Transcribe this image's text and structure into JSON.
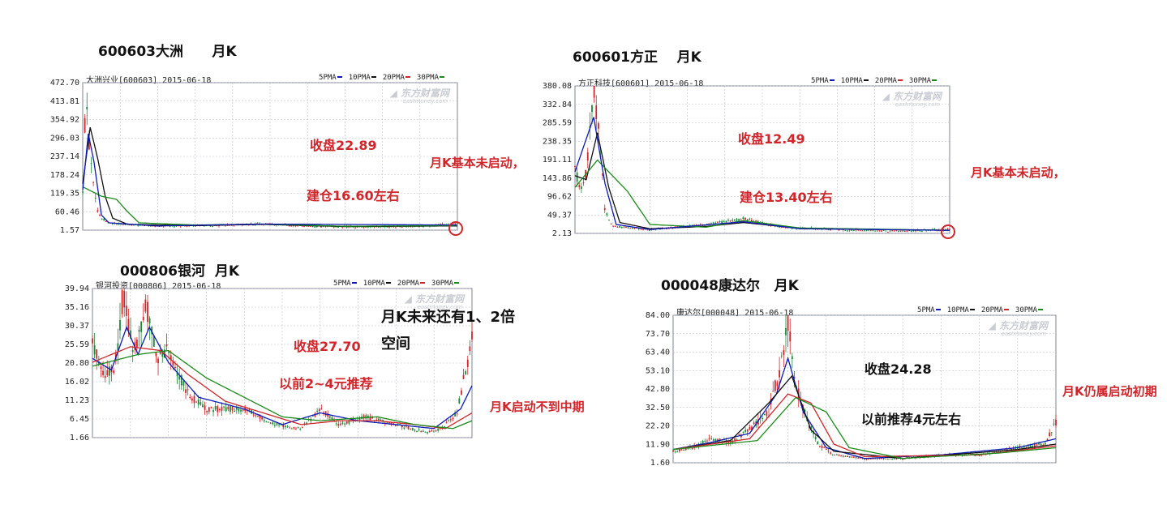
{
  "colors": {
    "ma5": "#0d1ab8",
    "ma10": "#111111",
    "ma20": "#d0262b",
    "ma30": "#1a8a1a",
    "annotation": "#d0262b",
    "grid": "#b8bec8"
  },
  "legend_labels": [
    "5PMA",
    "10PMA",
    "20PMA",
    "30PMA"
  ],
  "watermark": "东方财富网",
  "watermark_sub": "eastmoney.com",
  "charts": [
    {
      "title": "600603大洲",
      "period": "月K",
      "header": "大洲兴业[600603] 2015-06-18",
      "notes": {
        "close": "收盘22.89",
        "build": "建仓16.60左右",
        "status": "月K基本未启动，"
      },
      "chart_data": {
        "type": "candlestick",
        "y_ticks": [
          "472.70",
          "413.81",
          "354.92",
          "296.03",
          "237.14",
          "178.24",
          "119.35",
          "60.46",
          "1.57"
        ],
        "ylim": [
          1.57,
          472.7
        ],
        "series": {
          "price": [
            [
              0,
              120
            ],
            [
              0.005,
              320
            ],
            [
              0.01,
              440
            ],
            [
              0.015,
              300
            ],
            [
              0.02,
              250
            ],
            [
              0.03,
              150
            ],
            [
              0.04,
              60
            ],
            [
              0.05,
              40
            ],
            [
              0.07,
              25
            ],
            [
              0.1,
              20
            ],
            [
              0.2,
              15
            ],
            [
              0.35,
              16
            ],
            [
              0.48,
              22
            ],
            [
              0.6,
              14
            ],
            [
              0.75,
              12
            ],
            [
              0.9,
              14
            ],
            [
              1,
              23
            ]
          ],
          "ma10": [
            [
              0,
              150
            ],
            [
              0.02,
              330
            ],
            [
              0.04,
              230
            ],
            [
              0.06,
              110
            ],
            [
              0.08,
              40
            ],
            [
              0.12,
              20
            ],
            [
              0.3,
              16
            ],
            [
              0.48,
              20
            ],
            [
              0.7,
              13
            ],
            [
              1,
              15
            ]
          ],
          "ma30": [
            [
              0,
              140
            ],
            [
              0.05,
              110
            ],
            [
              0.09,
              100
            ],
            [
              0.12,
              60
            ],
            [
              0.15,
              25
            ],
            [
              0.3,
              18
            ],
            [
              0.48,
              21
            ],
            [
              0.7,
              14
            ],
            [
              1,
              16
            ]
          ],
          "ma5": [
            [
              0,
              130
            ],
            [
              0.015,
              310
            ],
            [
              0.03,
              220
            ],
            [
              0.05,
              50
            ],
            [
              0.07,
              25
            ],
            [
              0.2,
              15
            ],
            [
              0.48,
              21
            ],
            [
              1,
              18
            ]
          ]
        }
      }
    },
    {
      "title": "600601方正",
      "period": "月K",
      "header": "方正科技[600601] 2015-06-18",
      "notes": {
        "close": "收盘12.49",
        "build": "建仓13.40左右",
        "status": "月K基本未启动，"
      },
      "chart_data": {
        "type": "candlestick",
        "y_ticks": [
          "380.08",
          "332.84",
          "285.59",
          "238.35",
          "191.11",
          "143.86",
          "96.62",
          "49.37",
          "2.13"
        ],
        "ylim": [
          2.13,
          380.08
        ],
        "series": {
          "price": [
            [
              0,
              170
            ],
            [
              0.015,
              110
            ],
            [
              0.03,
              160
            ],
            [
              0.05,
              370
            ],
            [
              0.06,
              300
            ],
            [
              0.07,
              200
            ],
            [
              0.08,
              60
            ],
            [
              0.1,
              20
            ],
            [
              0.2,
              12
            ],
            [
              0.35,
              25
            ],
            [
              0.45,
              40
            ],
            [
              0.55,
              18
            ],
            [
              0.7,
              12
            ],
            [
              0.85,
              8
            ],
            [
              1,
              12
            ]
          ],
          "ma10": [
            [
              0,
              150
            ],
            [
              0.03,
              140
            ],
            [
              0.06,
              260
            ],
            [
              0.09,
              120
            ],
            [
              0.12,
              30
            ],
            [
              0.2,
              14
            ],
            [
              0.35,
              20
            ],
            [
              0.45,
              30
            ],
            [
              0.6,
              15
            ],
            [
              1,
              10
            ]
          ],
          "ma30": [
            [
              0,
              120
            ],
            [
              0.06,
              190
            ],
            [
              0.1,
              150
            ],
            [
              0.14,
              110
            ],
            [
              0.2,
              25
            ],
            [
              0.35,
              18
            ],
            [
              0.45,
              35
            ],
            [
              0.6,
              16
            ],
            [
              1,
              10
            ]
          ],
          "ma5": [
            [
              0,
              160
            ],
            [
              0.05,
              300
            ],
            [
              0.08,
              130
            ],
            [
              0.11,
              25
            ],
            [
              0.2,
              12
            ],
            [
              0.45,
              32
            ],
            [
              0.6,
              14
            ],
            [
              1,
              10
            ]
          ]
        }
      }
    },
    {
      "title": "000806银河",
      "period": "月K",
      "header": "银河投资[000806] 2015-06-18",
      "notes": {
        "close": "收盘27.70",
        "prev": "以前2~4元推荐",
        "future_1": "月K未来还有1、2倍",
        "future_2": "空间",
        "status": "月K启动不到中期"
      },
      "chart_data": {
        "type": "candlestick",
        "y_ticks": [
          "39.94",
          "35.16",
          "30.37",
          "25.59",
          "20.80",
          "16.02",
          "11.23",
          "6.45",
          "1.66"
        ],
        "ylim": [
          1.66,
          39.94
        ],
        "series": {
          "price": [
            [
              0,
              26
            ],
            [
              0.03,
              18
            ],
            [
              0.06,
              20
            ],
            [
              0.08,
              38
            ],
            [
              0.11,
              24
            ],
            [
              0.14,
              36
            ],
            [
              0.17,
              22
            ],
            [
              0.2,
              24
            ],
            [
              0.25,
              13
            ],
            [
              0.3,
              9
            ],
            [
              0.4,
              9
            ],
            [
              0.48,
              5
            ],
            [
              0.55,
              4
            ],
            [
              0.6,
              9
            ],
            [
              0.65,
              5
            ],
            [
              0.72,
              7
            ],
            [
              0.8,
              5
            ],
            [
              0.88,
              3
            ],
            [
              0.92,
              4
            ],
            [
              0.96,
              8
            ],
            [
              1,
              27
            ]
          ],
          "ma5": [
            [
              0,
              22
            ],
            [
              0.05,
              19
            ],
            [
              0.09,
              30
            ],
            [
              0.12,
              23
            ],
            [
              0.15,
              30
            ],
            [
              0.2,
              21
            ],
            [
              0.28,
              12
            ],
            [
              0.4,
              9
            ],
            [
              0.5,
              5
            ],
            [
              0.6,
              8
            ],
            [
              0.7,
              6
            ],
            [
              0.8,
              5
            ],
            [
              0.9,
              4
            ],
            [
              0.97,
              9
            ],
            [
              1,
              15
            ]
          ],
          "ma20": [
            [
              0,
              21
            ],
            [
              0.1,
              25
            ],
            [
              0.18,
              24
            ],
            [
              0.25,
              18
            ],
            [
              0.35,
              11
            ],
            [
              0.45,
              8
            ],
            [
              0.55,
              5
            ],
            [
              0.65,
              6
            ],
            [
              0.75,
              6
            ],
            [
              0.85,
              5
            ],
            [
              0.93,
              4
            ],
            [
              1,
              8
            ]
          ],
          "ma30": [
            [
              0,
              20
            ],
            [
              0.12,
              23
            ],
            [
              0.2,
              24
            ],
            [
              0.3,
              17
            ],
            [
              0.4,
              12
            ],
            [
              0.5,
              7
            ],
            [
              0.6,
              6
            ],
            [
              0.75,
              7
            ],
            [
              0.85,
              5
            ],
            [
              0.95,
              4
            ],
            [
              1,
              6
            ]
          ]
        }
      }
    },
    {
      "title": "000048康达尔",
      "period": "月K",
      "header": "康达尔[000048] 2015-06-18",
      "notes": {
        "close": "收盘24.28",
        "prev": "以前推荐4元左右",
        "status": "月K仍属启动初期"
      },
      "chart_data": {
        "type": "candlestick",
        "y_ticks": [
          "84.00",
          "73.70",
          "63.40",
          "53.10",
          "42.80",
          "32.50",
          "22.20",
          "11.90",
          "1.60"
        ],
        "ylim": [
          1.6,
          84.0
        ],
        "series": {
          "price": [
            [
              0,
              8
            ],
            [
              0.05,
              10
            ],
            [
              0.1,
              15
            ],
            [
              0.15,
              13
            ],
            [
              0.2,
              20
            ],
            [
              0.25,
              30
            ],
            [
              0.28,
              55
            ],
            [
              0.3,
              80
            ],
            [
              0.32,
              45
            ],
            [
              0.35,
              25
            ],
            [
              0.38,
              12
            ],
            [
              0.42,
              6
            ],
            [
              0.5,
              4
            ],
            [
              0.6,
              4
            ],
            [
              0.7,
              6
            ],
            [
              0.8,
              6
            ],
            [
              0.9,
              10
            ],
            [
              0.97,
              12
            ],
            [
              1,
              24
            ]
          ],
          "ma5": [
            [
              0,
              9
            ],
            [
              0.1,
              13
            ],
            [
              0.2,
              18
            ],
            [
              0.27,
              40
            ],
            [
              0.3,
              60
            ],
            [
              0.34,
              30
            ],
            [
              0.4,
              10
            ],
            [
              0.5,
              4
            ],
            [
              0.7,
              6
            ],
            [
              0.9,
              10
            ],
            [
              1,
              15
            ]
          ],
          "ma10": [
            [
              0,
              9
            ],
            [
              0.15,
              14
            ],
            [
              0.25,
              35
            ],
            [
              0.31,
              50
            ],
            [
              0.36,
              20
            ],
            [
              0.42,
              8
            ],
            [
              0.6,
              4
            ],
            [
              0.9,
              9
            ],
            [
              1,
              12
            ]
          ],
          "ma20": [
            [
              0,
              9
            ],
            [
              0.2,
              15
            ],
            [
              0.3,
              40
            ],
            [
              0.36,
              35
            ],
            [
              0.42,
              12
            ],
            [
              0.5,
              5
            ],
            [
              0.8,
              6
            ],
            [
              1,
              11
            ]
          ],
          "ma30": [
            [
              0,
              9
            ],
            [
              0.22,
              14
            ],
            [
              0.32,
              38
            ],
            [
              0.4,
              30
            ],
            [
              0.46,
              10
            ],
            [
              0.6,
              4
            ],
            [
              0.85,
              7
            ],
            [
              1,
              10
            ]
          ]
        }
      }
    }
  ]
}
